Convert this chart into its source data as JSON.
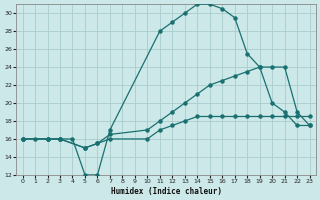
{
  "xlabel": "Humidex (Indice chaleur)",
  "bg_color": "#cce8e8",
  "grid_color": "#aacccc",
  "line_color": "#1a7070",
  "xlim": [
    -0.5,
    23.5
  ],
  "ylim": [
    12,
    31
  ],
  "yticks": [
    12,
    14,
    16,
    18,
    20,
    22,
    24,
    26,
    28,
    30
  ],
  "xticks": [
    0,
    1,
    2,
    3,
    4,
    5,
    6,
    7,
    8,
    9,
    10,
    11,
    12,
    13,
    14,
    15,
    16,
    17,
    18,
    19,
    20,
    21,
    22,
    23
  ],
  "line1_x": [
    0,
    1,
    2,
    3,
    4,
    5,
    6,
    7,
    11,
    12,
    13,
    14,
    15,
    16,
    17,
    18,
    19,
    20,
    21,
    22,
    23
  ],
  "line1_y": [
    16,
    16,
    16,
    16,
    16,
    12,
    12,
    17,
    28,
    29,
    30,
    31,
    31,
    30.5,
    29.5,
    25.5,
    24,
    20,
    19,
    17.5,
    17.5
  ],
  "line2_x": [
    0,
    2,
    3,
    5,
    6,
    7,
    10,
    11,
    12,
    13,
    14,
    15,
    16,
    17,
    18,
    19,
    20,
    21,
    22,
    23
  ],
  "line2_y": [
    16,
    16,
    16,
    15,
    15.5,
    16,
    16,
    17,
    17.5,
    18,
    18.5,
    18.5,
    18.5,
    18.5,
    18.5,
    18.5,
    18.5,
    18.5,
    18.5,
    18.5
  ],
  "line3_x": [
    0,
    2,
    3,
    5,
    6,
    7,
    10,
    11,
    12,
    13,
    14,
    15,
    16,
    17,
    18,
    19,
    20,
    21,
    22,
    23
  ],
  "line3_y": [
    16,
    16,
    16,
    15,
    15.5,
    16.5,
    17,
    18,
    19,
    20,
    21,
    22,
    22.5,
    23,
    23.5,
    24,
    24,
    24,
    19,
    17.5
  ]
}
